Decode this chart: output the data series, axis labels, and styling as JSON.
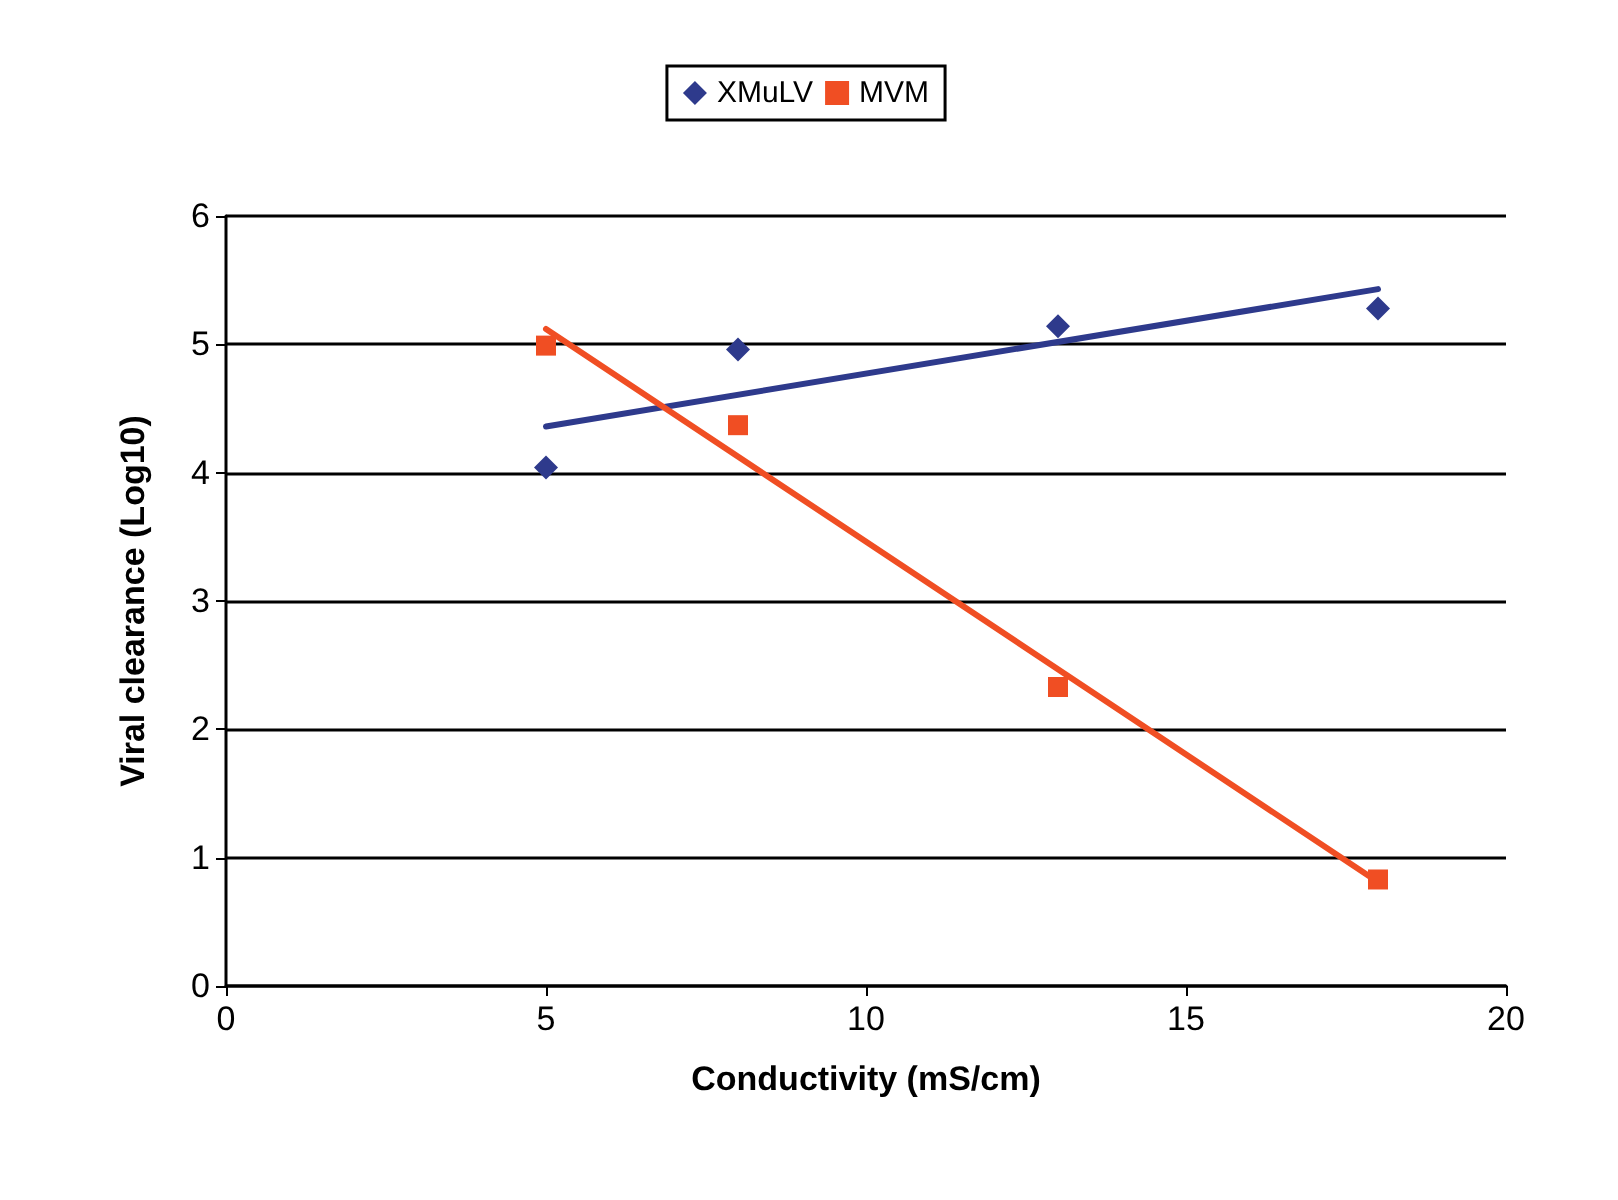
{
  "chart_data": {
    "type": "scatter",
    "xlabel": "Conductivity (mS/cm)",
    "ylabel": "Viral clearance (Log10)",
    "xlim": [
      0,
      20
    ],
    "xticks": [
      0,
      5,
      10,
      15,
      20
    ],
    "ylim": [
      0,
      6
    ],
    "yticks": [
      0,
      1,
      2,
      3,
      4,
      5,
      6
    ],
    "grid": "y",
    "legend": "top",
    "series": [
      {
        "name": "XMuLV",
        "type": "scatter",
        "marker": "diamond",
        "color": "#2e3a8c",
        "x": [
          5,
          8,
          13,
          18
        ],
        "values": [
          4.04,
          4.96,
          5.14,
          5.28
        ]
      },
      {
        "name": "MVM",
        "type": "scatter",
        "marker": "square",
        "color": "#f04e23",
        "x": [
          5,
          8,
          13,
          18
        ],
        "values": [
          4.99,
          4.37,
          2.33,
          0.83
        ]
      },
      {
        "type": "line",
        "marker": "none",
        "color": "#2e3a8c",
        "x": [
          5,
          18
        ],
        "values": [
          4.36,
          5.43
        ]
      },
      {
        "type": "line",
        "marker": "none",
        "color": "#f04e23",
        "x": [
          5,
          18
        ],
        "values": [
          5.12,
          0.81
        ]
      }
    ]
  }
}
